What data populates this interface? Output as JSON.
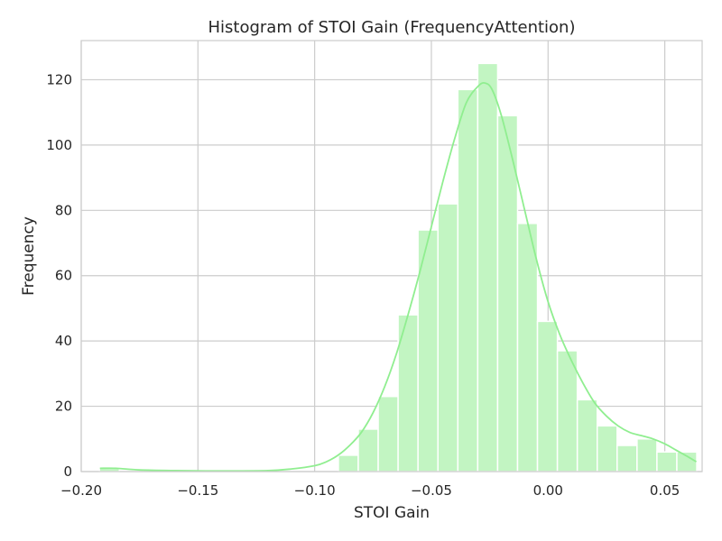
{
  "chart_data": {
    "type": "bar",
    "subtype": "histogram",
    "title": "Histogram of STOI Gain (FrequencyAttention)",
    "xlabel": "STOI Gain",
    "ylabel": "Frequency",
    "xlim": [
      -0.2,
      0.066
    ],
    "ylim": [
      0,
      132
    ],
    "xticks": [
      -0.2,
      -0.15,
      -0.1,
      -0.05,
      0.0,
      0.05
    ],
    "xtick_labels": [
      "−0.20",
      "−0.15",
      "−0.10",
      "−0.05",
      "0.00",
      "0.05"
    ],
    "yticks": [
      0,
      20,
      40,
      60,
      80,
      100,
      120
    ],
    "ytick_labels": [
      "0",
      "20",
      "40",
      "60",
      "80",
      "100",
      "120"
    ],
    "grid": true,
    "bar_color": "#c2f5c2",
    "kde_color": "#90ee90",
    "bins": {
      "start": -0.1922,
      "width": 0.00853,
      "counts": [
        1,
        0,
        0,
        0,
        0,
        0,
        0,
        0,
        0,
        0,
        0,
        0,
        5,
        13,
        23,
        48,
        74,
        82,
        117,
        125,
        109,
        76,
        46,
        37,
        22,
        14,
        8,
        10,
        6,
        6
      ]
    },
    "kde": {
      "x": [
        -0.192,
        -0.185,
        -0.175,
        -0.16,
        -0.14,
        -0.12,
        -0.11,
        -0.1,
        -0.095,
        -0.09,
        -0.085,
        -0.08,
        -0.075,
        -0.07,
        -0.065,
        -0.06,
        -0.055,
        -0.05,
        -0.045,
        -0.04,
        -0.035,
        -0.03,
        -0.027,
        -0.024,
        -0.02,
        -0.015,
        -0.01,
        -0.005,
        0.0,
        0.005,
        0.01,
        0.015,
        0.02,
        0.025,
        0.03,
        0.035,
        0.04,
        0.045,
        0.05,
        0.055,
        0.06,
        0.0635
      ],
      "y": [
        1,
        1,
        0.5,
        0.3,
        0.2,
        0.3,
        0.8,
        1.8,
        3,
        5,
        8,
        12,
        18,
        26,
        36,
        48,
        61,
        75,
        89,
        102,
        113,
        118,
        119,
        117,
        109,
        95,
        80,
        65,
        52,
        42,
        34,
        27,
        21,
        17,
        14,
        12,
        11,
        10,
        8.5,
        6.5,
        4.5,
        3
      ]
    }
  }
}
